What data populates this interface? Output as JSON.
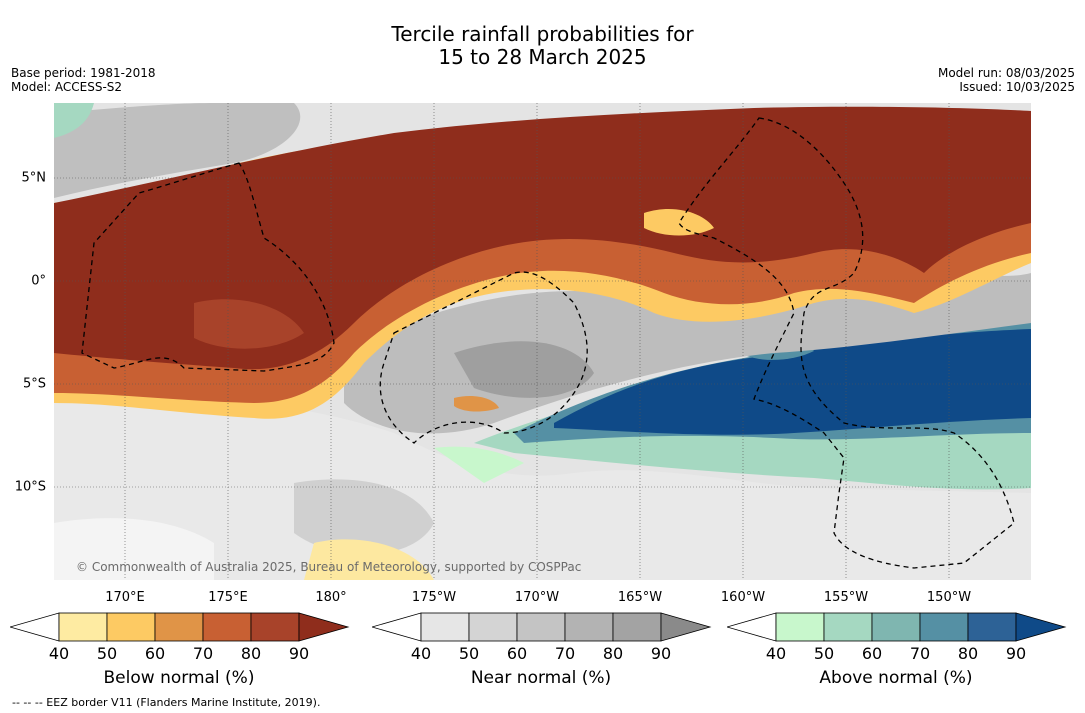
{
  "header": {
    "title_line1": "Tercile rainfall probabilities for",
    "title_line2": "15 to 28 March 2025",
    "base_period": "Base period: 1981-2018",
    "model": "Model: ACCESS-S2",
    "model_run": "Model run: 08/03/2025",
    "issued": "Issued: 10/03/2025"
  },
  "map": {
    "lon_labels": [
      "170°E",
      "175°E",
      "180°",
      "175°W",
      "170°W",
      "165°W",
      "160°W",
      "155°W",
      "150°W"
    ],
    "lat_labels": [
      "5°N",
      "0°",
      "5°S",
      "10°S"
    ],
    "copyright": "© Commonwealth of Australia 2025, Bureau of Meteorology, supported by COSPPac"
  },
  "colorbars": [
    {
      "title": "Below normal (%)",
      "ticks": [
        "40",
        "50",
        "60",
        "70",
        "80",
        "90"
      ],
      "colors": [
        "#ffffff",
        "#feeba2",
        "#fdca63",
        "#e09447",
        "#c86033",
        "#a8432a",
        "#8f2d1c"
      ]
    },
    {
      "title": "Near normal (%)",
      "ticks": [
        "40",
        "50",
        "60",
        "70",
        "80",
        "90"
      ],
      "colors": [
        "#ffffff",
        "#e6e6e6",
        "#d4d4d4",
        "#c4c4c4",
        "#b3b3b3",
        "#a3a3a3",
        "#8a8a8a"
      ]
    },
    {
      "title": "Above normal (%)",
      "ticks": [
        "40",
        "50",
        "60",
        "70",
        "80",
        "90"
      ],
      "colors": [
        "#ffffff",
        "#c8f7cc",
        "#a5d8c1",
        "#7fb6b0",
        "#5590a4",
        "#2d6296",
        "#0f4a88"
      ]
    }
  ],
  "footer": {
    "eez_legend": "--  --  -- EEZ border V11 (Flanders Marine Institute, 2019)."
  }
}
